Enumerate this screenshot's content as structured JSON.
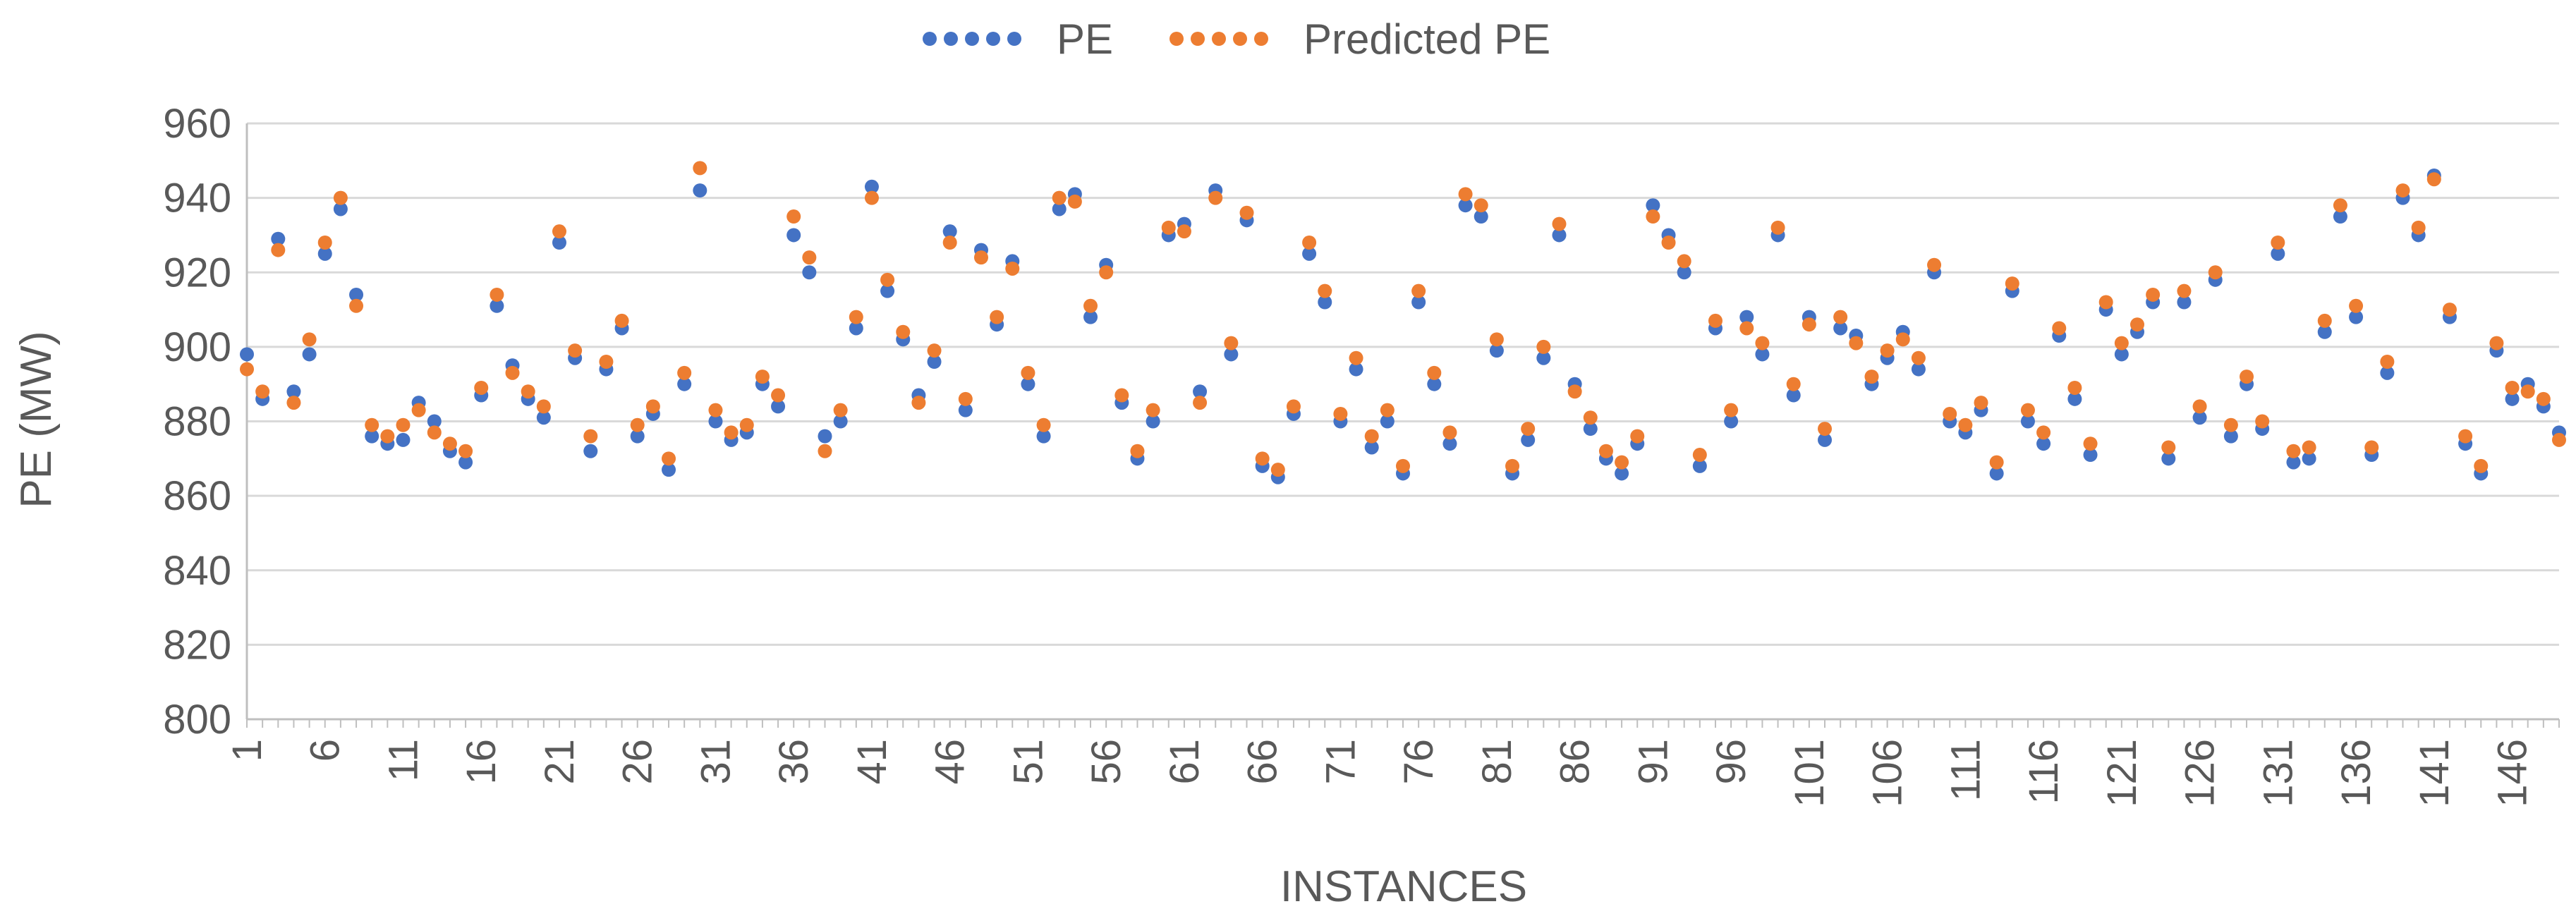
{
  "chart_data": {
    "type": "scatter",
    "title": "",
    "xlabel": "INSTANCES",
    "ylabel": "PE (MW)",
    "ylim": [
      800,
      960
    ],
    "yticks": [
      800,
      820,
      840,
      860,
      880,
      900,
      920,
      940,
      960
    ],
    "xlim": [
      1,
      149
    ],
    "xticks": [
      1,
      6,
      11,
      16,
      21,
      26,
      31,
      36,
      41,
      46,
      51,
      56,
      61,
      66,
      71,
      76,
      81,
      86,
      91,
      96,
      101,
      106,
      111,
      116,
      121,
      126,
      131,
      136,
      141,
      146
    ],
    "grid": "horizontal",
    "legend_position": "top-center",
    "series": [
      {
        "name": "PE",
        "color": "#4472C4",
        "x": [
          1,
          2,
          3,
          4,
          5,
          6,
          7,
          8,
          9,
          10,
          11,
          12,
          13,
          14,
          15,
          16,
          17,
          18,
          19,
          20,
          21,
          22,
          23,
          24,
          25,
          26,
          27,
          28,
          29,
          30,
          31,
          32,
          33,
          34,
          35,
          36,
          37,
          38,
          39,
          40,
          41,
          42,
          43,
          44,
          45,
          46,
          47,
          48,
          49,
          50,
          51,
          52,
          53,
          54,
          55,
          56,
          57,
          58,
          59,
          60,
          61,
          62,
          63,
          64,
          65,
          66,
          67,
          68,
          69,
          70,
          71,
          72,
          73,
          74,
          75,
          76,
          77,
          78,
          79,
          80,
          81,
          82,
          83,
          84,
          85,
          86,
          87,
          88,
          89,
          90,
          91,
          92,
          93,
          94,
          95,
          96,
          97,
          98,
          99,
          100,
          101,
          102,
          103,
          104,
          105,
          106,
          107,
          108,
          109,
          110,
          111,
          112,
          113,
          114,
          115,
          116,
          117,
          118,
          119,
          120,
          121,
          122,
          123,
          124,
          125,
          126,
          127,
          128,
          129,
          130,
          131,
          132,
          133,
          134,
          135,
          136,
          137,
          138,
          139,
          140,
          141,
          142,
          143,
          144,
          145,
          146,
          147,
          148,
          149
        ],
        "y": [
          898,
          886,
          929,
          888,
          898,
          925,
          937,
          914,
          876,
          874,
          875,
          885,
          880,
          872,
          869,
          887,
          911,
          895,
          886,
          881,
          928,
          897,
          872,
          894,
          905,
          876,
          882,
          867,
          890,
          942,
          880,
          875,
          877,
          890,
          884,
          930,
          920,
          876,
          880,
          905,
          943,
          915,
          902,
          887,
          896,
          931,
          883,
          926,
          906,
          923,
          890,
          876,
          937,
          941,
          908,
          922,
          885,
          870,
          880,
          930,
          933,
          888,
          942,
          898,
          934,
          868,
          865,
          882,
          925,
          912,
          880,
          894,
          873,
          880,
          866,
          912,
          890,
          874,
          938,
          935,
          899,
          866,
          875,
          897,
          930,
          890,
          878,
          870,
          866,
          874,
          938,
          930,
          920,
          868,
          905,
          880,
          908,
          898,
          930,
          887,
          908,
          875,
          905,
          903,
          890,
          897,
          904,
          894,
          920,
          880,
          877,
          883,
          866,
          915,
          880,
          874,
          903,
          886,
          871,
          910,
          898,
          904,
          912,
          870,
          912,
          881,
          918,
          876,
          890,
          878,
          925,
          869,
          870,
          904,
          935,
          908,
          871,
          893,
          940,
          930,
          946,
          908,
          874,
          866,
          899,
          886,
          890,
          884,
          877
        ]
      },
      {
        "name": "Predicted PE",
        "color": "#ED7D31",
        "x": [
          1,
          2,
          3,
          4,
          5,
          6,
          7,
          8,
          9,
          10,
          11,
          12,
          13,
          14,
          15,
          16,
          17,
          18,
          19,
          20,
          21,
          22,
          23,
          24,
          25,
          26,
          27,
          28,
          29,
          30,
          31,
          32,
          33,
          34,
          35,
          36,
          37,
          38,
          39,
          40,
          41,
          42,
          43,
          44,
          45,
          46,
          47,
          48,
          49,
          50,
          51,
          52,
          53,
          54,
          55,
          56,
          57,
          58,
          59,
          60,
          61,
          62,
          63,
          64,
          65,
          66,
          67,
          68,
          69,
          70,
          71,
          72,
          73,
          74,
          75,
          76,
          77,
          78,
          79,
          80,
          81,
          82,
          83,
          84,
          85,
          86,
          87,
          88,
          89,
          90,
          91,
          92,
          93,
          94,
          95,
          96,
          97,
          98,
          99,
          100,
          101,
          102,
          103,
          104,
          105,
          106,
          107,
          108,
          109,
          110,
          111,
          112,
          113,
          114,
          115,
          116,
          117,
          118,
          119,
          120,
          121,
          122,
          123,
          124,
          125,
          126,
          127,
          128,
          129,
          130,
          131,
          132,
          133,
          134,
          135,
          136,
          137,
          138,
          139,
          140,
          141,
          142,
          143,
          144,
          145,
          146,
          147,
          148,
          149
        ],
        "y": [
          894,
          888,
          926,
          885,
          902,
          928,
          940,
          911,
          879,
          876,
          879,
          883,
          877,
          874,
          872,
          889,
          914,
          893,
          888,
          884,
          931,
          899,
          876,
          896,
          907,
          879,
          884,
          870,
          893,
          948,
          883,
          877,
          879,
          892,
          887,
          935,
          924,
          872,
          883,
          908,
          940,
          918,
          904,
          885,
          899,
          928,
          886,
          924,
          908,
          921,
          893,
          879,
          940,
          939,
          911,
          920,
          887,
          872,
          883,
          932,
          931,
          885,
          940,
          901,
          936,
          870,
          867,
          884,
          928,
          915,
          882,
          897,
          876,
          883,
          868,
          915,
          893,
          877,
          941,
          938,
          902,
          868,
          878,
          900,
          933,
          888,
          881,
          872,
          869,
          876,
          935,
          928,
          923,
          871,
          907,
          883,
          905,
          901,
          932,
          890,
          906,
          878,
          908,
          901,
          892,
          899,
          902,
          897,
          922,
          882,
          879,
          885,
          869,
          917,
          883,
          877,
          905,
          889,
          874,
          912,
          901,
          906,
          914,
          873,
          915,
          884,
          920,
          879,
          892,
          880,
          928,
          872,
          873,
          907,
          938,
          911,
          873,
          896,
          942,
          932,
          945,
          910,
          876,
          868,
          901,
          889,
          888,
          886,
          875
        ]
      }
    ]
  }
}
